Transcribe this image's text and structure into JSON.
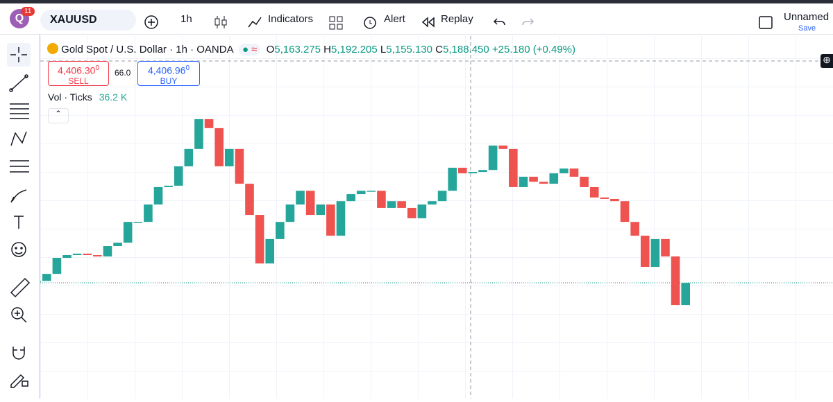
{
  "toolbar": {
    "badge": "11",
    "symbol": "XAUUSD",
    "interval": "1h",
    "indicators": "Indicators",
    "alert": "Alert",
    "replay": "Replay",
    "layout_name": "Unnamed",
    "save": "Save"
  },
  "legend": {
    "title": "Gold Spot / U.S. Dollar · 1h · OANDA",
    "o_label": "O",
    "open": "5,163.275",
    "h_label": "H",
    "high": "5,192.205",
    "l_label": "L",
    "low": "5,155.130",
    "c_label": "C",
    "close": "5,188.450",
    "change": "+25.180 (+0.49%)",
    "sell_price": "4,406.30",
    "sell_sup": "0",
    "sell": "SELL",
    "spread": "66.0",
    "buy_price": "4,406.96",
    "buy_sup": "0",
    "buy": "BUY",
    "volume_label": "Vol · Ticks",
    "volume": "36.2 K"
  },
  "chart_data": {
    "type": "candle-path",
    "up_color": "#26a69a",
    "down_color": "#ef5350",
    "ylim": [
      4776,
      6067
    ],
    "values": [
      5195,
      5220,
      5277,
      5287,
      5292,
      5287,
      5282,
      5319,
      5331,
      5405,
      5405,
      5467,
      5529,
      5534,
      5603,
      5665,
      5771,
      5739,
      5603,
      5665,
      5541,
      5430,
      5257,
      5344,
      5405,
      5467,
      5516,
      5430,
      5467,
      5356,
      5479,
      5504,
      5516,
      5516,
      5455,
      5479,
      5455,
      5418,
      5467,
      5479,
      5516,
      5598,
      5578,
      5583,
      5590,
      5677,
      5665,
      5529,
      5566,
      5548,
      5541,
      5578,
      5595,
      5566,
      5529,
      5492,
      5487,
      5479,
      5405,
      5356,
      5245,
      5344,
      5282,
      5109,
      5188
    ]
  }
}
